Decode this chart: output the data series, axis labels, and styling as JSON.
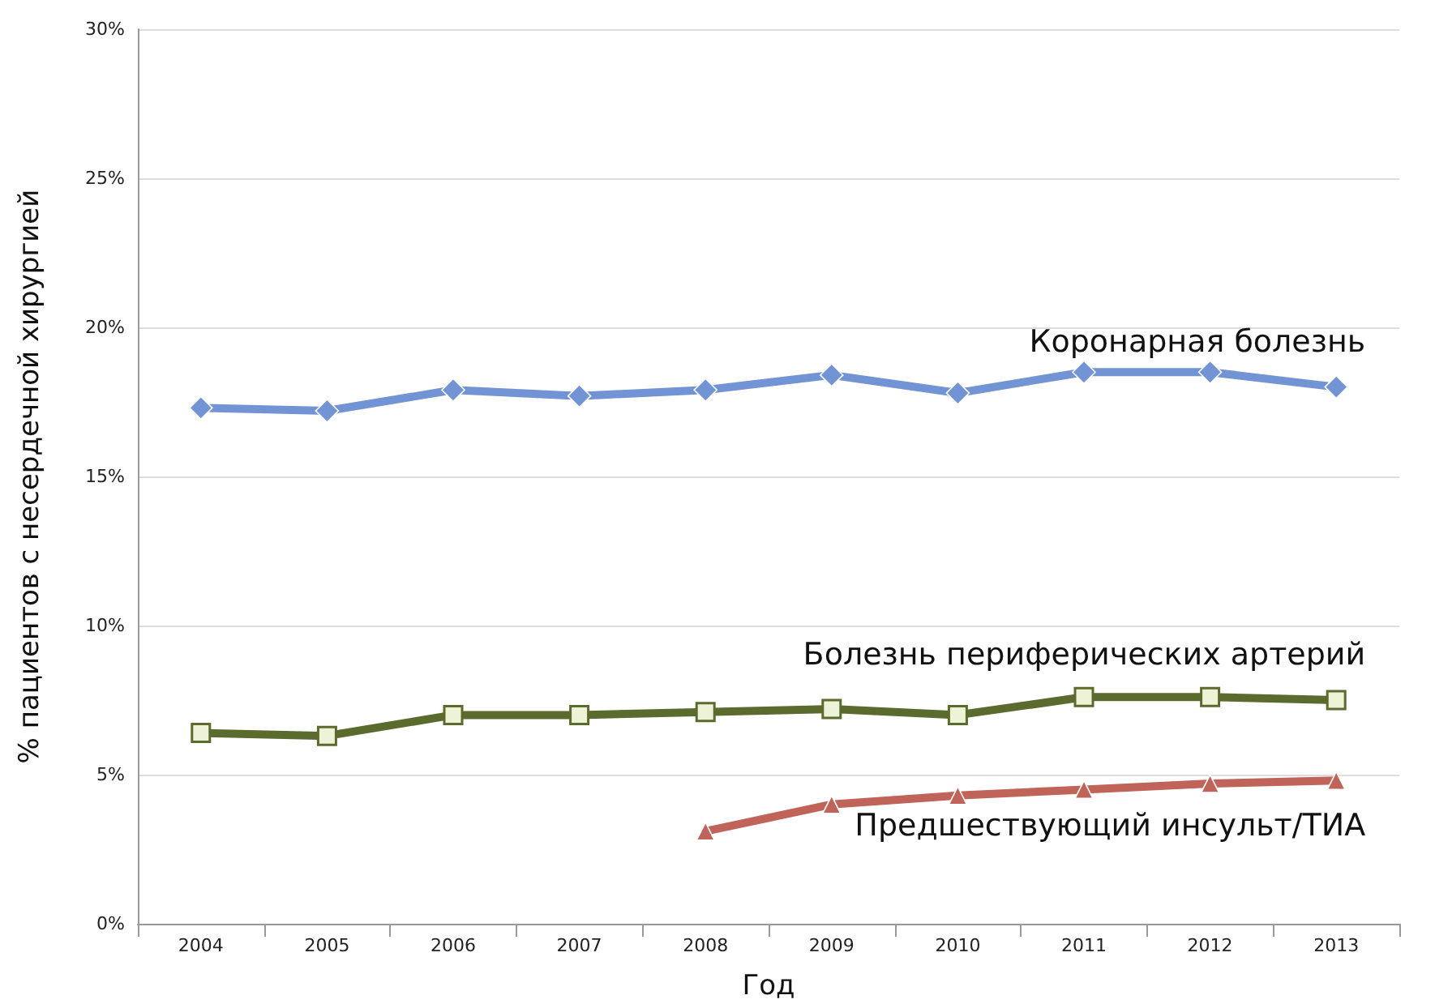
{
  "chart_data": {
    "type": "line",
    "xlabel": "Год",
    "ylabel": "% пациентов с несердечной хирургией",
    "categories": [
      "2004",
      "2005",
      "2006",
      "2007",
      "2008",
      "2009",
      "2010",
      "2011",
      "2012",
      "2013"
    ],
    "series": [
      {
        "name": "Коронарная болезнь",
        "color": "#7294d4",
        "marker": "diamond",
        "values": [
          17.3,
          17.2,
          17.9,
          17.7,
          17.9,
          18.4,
          17.8,
          18.5,
          18.5,
          18.0
        ]
      },
      {
        "name": "Болезнь периферических артерий",
        "color": "#5b6b2e",
        "marker": "square",
        "values": [
          6.4,
          6.3,
          7.0,
          7.0,
          7.1,
          7.2,
          7.0,
          7.6,
          7.6,
          7.5
        ]
      },
      {
        "name": "Предшествующий инсульт/ТИА",
        "color": "#c0645a",
        "marker": "triangle",
        "values": [
          null,
          null,
          null,
          null,
          3.1,
          4.0,
          4.3,
          4.5,
          4.7,
          4.8
        ]
      }
    ],
    "ylim": [
      0,
      30
    ],
    "yticks": [
      {
        "value": 0,
        "label": "0%"
      },
      {
        "value": 5,
        "label": "5%"
      },
      {
        "value": 10,
        "label": "10%"
      },
      {
        "value": 15,
        "label": "15%"
      },
      {
        "value": 20,
        "label": "20%"
      },
      {
        "value": 25,
        "label": "25%"
      },
      {
        "value": 30,
        "label": "30%"
      }
    ],
    "grid": "y",
    "legend": false,
    "line_style": "solid"
  }
}
